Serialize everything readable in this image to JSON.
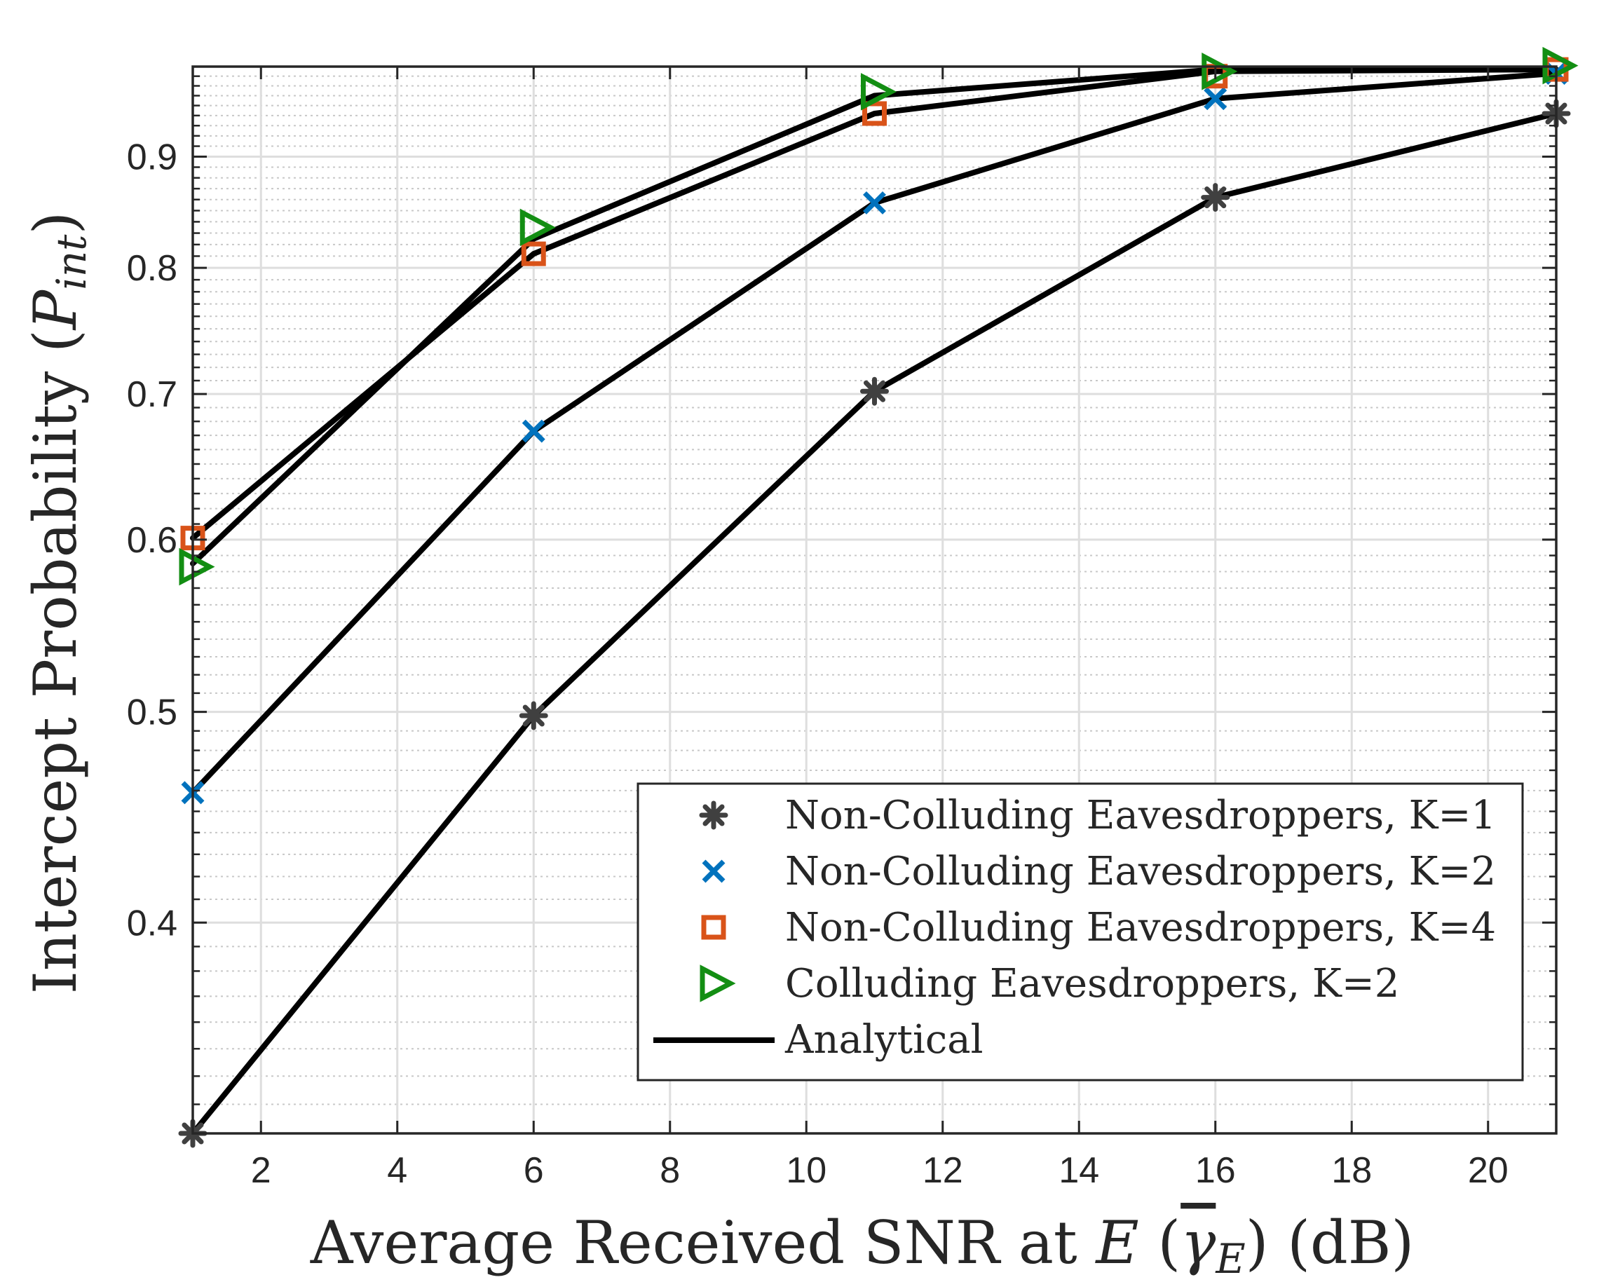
{
  "chart_data": {
    "type": "line",
    "xlabel": "Average Received SNR at E (γ̄E) (dB)",
    "ylabel": "Intercept Probability (P_int)",
    "xlabel_parts": {
      "main": "Average Received SNR at ",
      "var": "E",
      "open": " (",
      "gamma": "γ",
      "sub": "E",
      "close": ") (dB)"
    },
    "ylabel_parts": {
      "main": "Intercept Probability (",
      "var": "P",
      "sub": "int",
      "close": ")"
    },
    "xlim": [
      1,
      21
    ],
    "ylim": [
      0.32,
      0.99
    ],
    "yscale": "log",
    "grid": true,
    "xticks": [
      2,
      4,
      6,
      8,
      10,
      12,
      14,
      16,
      18,
      20
    ],
    "xtick_labels": [
      "2",
      "4",
      "6",
      "8",
      "10",
      "12",
      "14",
      "16",
      "18",
      "20"
    ],
    "yticks": [
      0.4,
      0.5,
      0.6,
      0.7,
      0.8,
      0.9
    ],
    "ytick_labels": [
      "0.4",
      "0.5",
      "0.6",
      "0.7",
      "0.8",
      "0.9"
    ],
    "yminor": [
      0.33,
      0.34,
      0.35,
      0.36,
      0.37,
      0.38,
      0.39,
      0.41,
      0.42,
      0.43,
      0.44,
      0.45,
      0.46,
      0.47,
      0.48,
      0.49,
      0.51,
      0.52,
      0.53,
      0.54,
      0.55,
      0.56,
      0.57,
      0.58,
      0.59,
      0.61,
      0.62,
      0.63,
      0.64,
      0.65,
      0.66,
      0.67,
      0.68,
      0.69,
      0.71,
      0.72,
      0.73,
      0.74,
      0.75,
      0.76,
      0.77,
      0.78,
      0.79,
      0.81,
      0.82,
      0.83,
      0.84,
      0.85,
      0.86,
      0.87,
      0.88,
      0.89,
      0.91,
      0.92,
      0.93,
      0.94,
      0.95,
      0.96,
      0.97,
      0.98
    ],
    "x": [
      1,
      6,
      11,
      16,
      21
    ],
    "series": [
      {
        "name": "Non-Colluding Eavesdroppers, K=1",
        "marker": "asterisk",
        "color": "#404040",
        "values": [
          0.32,
          0.498,
          0.702,
          0.862,
          0.942
        ]
      },
      {
        "name": "Non-Colluding Eavesdroppers, K=2",
        "marker": "x",
        "color": "#0072BD",
        "values": [
          0.459,
          0.673,
          0.857,
          0.957,
          0.983
        ]
      },
      {
        "name": "Non-Colluding Eavesdroppers, K=4",
        "marker": "square",
        "color": "#D95319",
        "values": [
          0.601,
          0.812,
          0.942,
          0.98,
          0.987
        ]
      },
      {
        "name": "Colluding Eavesdroppers, K=2",
        "marker": "triangle-right",
        "color": "#138E13",
        "values": [
          0.583,
          0.835,
          0.964,
          0.985,
          0.991
        ]
      }
    ],
    "analytical": {
      "name": "Analytical",
      "color": "#000000",
      "curves": [
        [
          0.32,
          0.498,
          0.702,
          0.862,
          0.942
        ],
        [
          0.459,
          0.673,
          0.857,
          0.957,
          0.983
        ],
        [
          0.601,
          0.812,
          0.942,
          0.985,
          0.987
        ],
        [
          0.585,
          0.825,
          0.96,
          0.987,
          0.987
        ]
      ]
    },
    "legend": {
      "location": "bottom-right",
      "entries": [
        "Non-Colluding Eavesdroppers, K=1",
        "Non-Colluding Eavesdroppers, K=2",
        "Non-Colluding Eavesdroppers, K=4",
        "Colluding Eavesdroppers, K=2",
        "Analytical"
      ]
    }
  }
}
